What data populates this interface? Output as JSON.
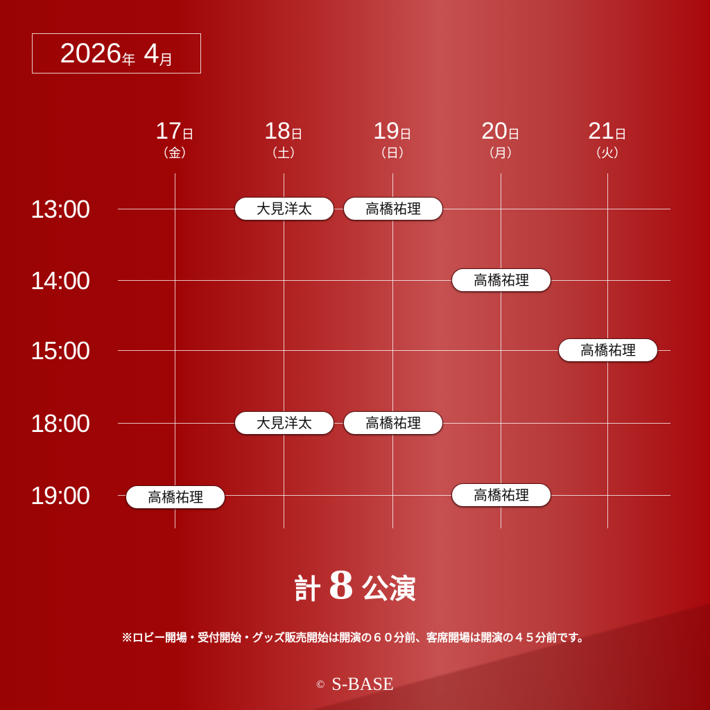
{
  "header": {
    "year": "2026",
    "year_unit": "年",
    "month": "4",
    "month_unit": "月"
  },
  "days": [
    {
      "num": "17",
      "unit": "日",
      "weekday": "（金）"
    },
    {
      "num": "18",
      "unit": "日",
      "weekday": "（土）"
    },
    {
      "num": "19",
      "unit": "日",
      "weekday": "（日）"
    },
    {
      "num": "20",
      "unit": "日",
      "weekday": "（月）"
    },
    {
      "num": "21",
      "unit": "日",
      "weekday": "（火）"
    }
  ],
  "times": [
    "13:00",
    "14:00",
    "15:00",
    "18:00",
    "19:00"
  ],
  "performances": [
    {
      "day": "18",
      "time": "13:00",
      "performer": "大見洋太"
    },
    {
      "day": "19",
      "time": "13:00",
      "performer": "高橋祐理"
    },
    {
      "day": "20",
      "time": "14:00",
      "performer": "高橋祐理"
    },
    {
      "day": "21",
      "time": "15:00",
      "performer": "高橋祐理"
    },
    {
      "day": "18",
      "time": "18:00",
      "performer": "大見洋太"
    },
    {
      "day": "19",
      "time": "18:00",
      "performer": "高橋祐理"
    },
    {
      "day": "17",
      "time": "19:00",
      "performer": "高橋祐理"
    },
    {
      "day": "20",
      "time": "19:00",
      "performer": "高橋祐理"
    }
  ],
  "total": {
    "prefix": "計",
    "count": "8",
    "suffix": "公演"
  },
  "note": "※ロビー開場・受付開始・グッズ販売開始は開演の６０分前、客席開場は開演の４５分前です。",
  "copyright": {
    "symbol": "©",
    "text": "S-BASE"
  },
  "colors": {
    "background": "#a00506",
    "highlight": "#c65050",
    "pill": "#ffffff"
  }
}
